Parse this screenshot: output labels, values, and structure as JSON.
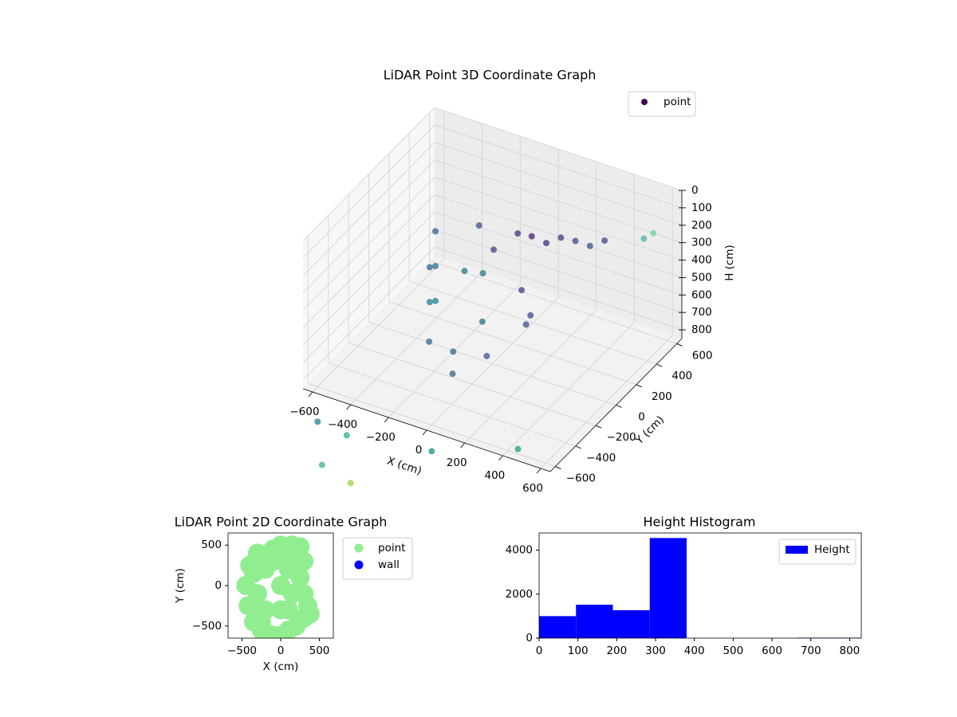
{
  "chart_data": [
    {
      "type": "scatter3d",
      "title": "LiDAR Point 3D Coordinate Graph",
      "xlabel": "X (cm)",
      "ylabel": "Y (cm)",
      "zlabel": "H (cm)",
      "xlim": [
        -650,
        650
      ],
      "ylim": [
        -650,
        650
      ],
      "zlim": [
        0,
        850
      ],
      "z_inverted": true,
      "grid": true,
      "legend": "upper right",
      "xticks": [
        {
          "value": -600,
          "label": "−600"
        },
        {
          "value": -400,
          "label": "−400"
        },
        {
          "value": -200,
          "label": "−200"
        },
        0,
        200,
        400,
        600
      ],
      "yticks": [
        {
          "value": -600,
          "label": "−600"
        },
        {
          "value": -400,
          "label": "−400"
        },
        {
          "value": -200,
          "label": "−200"
        },
        0,
        200,
        400,
        600
      ],
      "zticks": [
        0,
        100,
        200,
        300,
        400,
        500,
        600,
        700,
        800
      ],
      "series": [
        {
          "name": "point",
          "color": "#440154",
          "x": [
            -300,
            -300,
            -300,
            -250,
            -250,
            -200,
            -150,
            -100,
            0,
            100,
            150,
            200,
            250,
            300,
            350,
            100,
            0,
            -100,
            50,
            -50,
            200,
            150,
            -200,
            -50,
            450,
            500,
            -600,
            -500,
            -550,
            -400,
            0,
            400
          ],
          "y": [
            0,
            0,
            0,
            -150,
            -150,
            -250,
            150,
            200,
            250,
            200,
            250,
            300,
            350,
            400,
            450,
            100,
            -100,
            -200,
            -150,
            -300,
            0,
            50,
            100,
            0,
            650,
            650,
            -600,
            -500,
            -650,
            -650,
            -600,
            -500
          ],
          "z": [
            200,
            400,
            600,
            300,
            500,
            650,
            200,
            350,
            250,
            200,
            250,
            230,
            260,
            300,
            280,
            450,
            550,
            700,
            700,
            750,
            500,
            600,
            450,
            350,
            350,
            300,
            1050,
            1150,
            1250,
            1300,
            1000,
            900
          ],
          "colors": [
            "#355f8d",
            "#2c728e",
            "#26828e",
            "#33638d",
            "#277f8e",
            "#31688e",
            "#3b528b",
            "#414487",
            "#46327e",
            "#481f70",
            "#472c7a",
            "#443983",
            "#3f4788",
            "#3b528b",
            "#3e4989",
            "#433e85",
            "#2d708e",
            "#31688e",
            "#3b528b",
            "#355f8d",
            "#3e4a89",
            "#3b528b",
            "#2a788e",
            "#2c728e",
            "#4fb2a3",
            "#6ccfa6",
            "#26828e",
            "#2fb47c",
            "#35b779",
            "#8fd744",
            "#21918c",
            "#1fa187"
          ]
        }
      ]
    },
    {
      "type": "scatter",
      "title": "LiDAR Point 2D Coordinate Graph",
      "xlabel": "X (cm)",
      "ylabel": "Y (cm)",
      "xlim": [
        -680,
        680
      ],
      "ylim": [
        -650,
        650
      ],
      "legend": "outside right",
      "xticks": [
        {
          "value": -500,
          "label": "−500"
        },
        0,
        500
      ],
      "yticks": [
        {
          "value": -500,
          "label": "−500"
        },
        0,
        500
      ],
      "series": [
        {
          "name": "point",
          "color": "#90ee90",
          "x": [
            -450,
            -420,
            -400,
            -350,
            -300,
            -250,
            -150,
            -100,
            0,
            -50,
            100,
            150,
            200,
            250,
            300,
            300,
            350,
            380,
            250,
            300,
            100,
            -200,
            -200,
            0,
            100,
            -300,
            0,
            150,
            -100,
            200,
            50,
            -250,
            -350
          ],
          "y": [
            0,
            -250,
            250,
            -450,
            400,
            -550,
            -600,
            450,
            500,
            -620,
            -550,
            500,
            -500,
            480,
            300,
            -400,
            -250,
            -350,
            100,
            -100,
            -300,
            -300,
            200,
            0,
            200,
            -100,
            -300,
            -100,
            300,
            350,
            400,
            -450,
            150
          ]
        },
        {
          "name": "wall",
          "color": "#0000ff",
          "x": [],
          "y": []
        }
      ]
    },
    {
      "type": "histogram",
      "title": "Height Histogram",
      "xlim": [
        0,
        830
      ],
      "ylim": [
        0,
        4780
      ],
      "legend": "upper right",
      "xticks": [
        0,
        100,
        200,
        300,
        400,
        500,
        600,
        700,
        800
      ],
      "yticks": [
        0,
        2000,
        4000
      ],
      "bins": [
        0,
        95,
        190,
        285,
        380,
        475,
        570,
        665,
        760,
        830
      ],
      "series": [
        {
          "name": "Height",
          "color": "#0000ff",
          "values": [
            1000,
            1520,
            1270,
            4550,
            0,
            0,
            0,
            20,
            20
          ]
        }
      ]
    }
  ]
}
